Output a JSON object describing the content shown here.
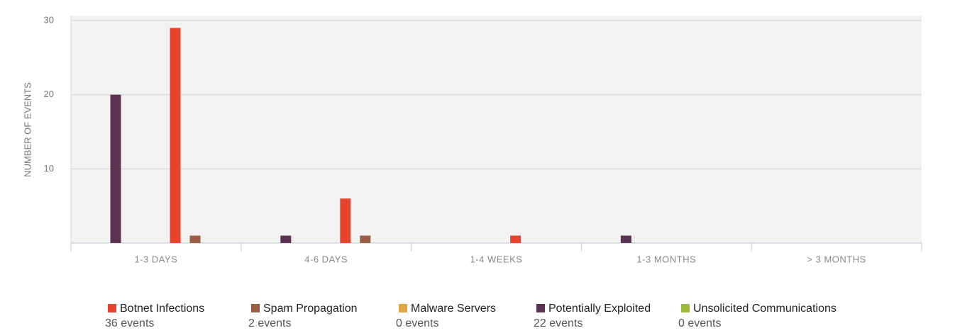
{
  "chart_data": {
    "type": "bar",
    "y_label": "NUMBER OF EVENTS",
    "categories": [
      "1-3 DAYS",
      "4-6 DAYS",
      "1-4 WEEKS",
      "1-3 MONTHS",
      "> 3 MONTHS"
    ],
    "series": [
      {
        "name": "Botnet Infections",
        "color": "#e8432d",
        "values": [
          29,
          6,
          1,
          0,
          0
        ],
        "legend_label": "36 events"
      },
      {
        "name": "Spam Propagation",
        "color": "#9a5f43",
        "values": [
          1,
          1,
          0,
          0,
          0
        ],
        "legend_label": "2 events"
      },
      {
        "name": "Malware Servers",
        "color": "#e3a33f",
        "values": [
          0,
          0,
          0,
          0,
          0
        ],
        "legend_label": "0 events"
      },
      {
        "name": "Potentially Exploited",
        "color": "#5b3252",
        "values": [
          20,
          1,
          0,
          1,
          0
        ],
        "legend_label": "22 events"
      },
      {
        "name": "Unsolicited Communications",
        "color": "#9cbb3b",
        "values": [
          0,
          0,
          0,
          0,
          0
        ],
        "legend_label": "0 events"
      }
    ],
    "ylim": [
      0,
      30
    ],
    "yticks": [
      10,
      20,
      30
    ],
    "grid": true
  }
}
